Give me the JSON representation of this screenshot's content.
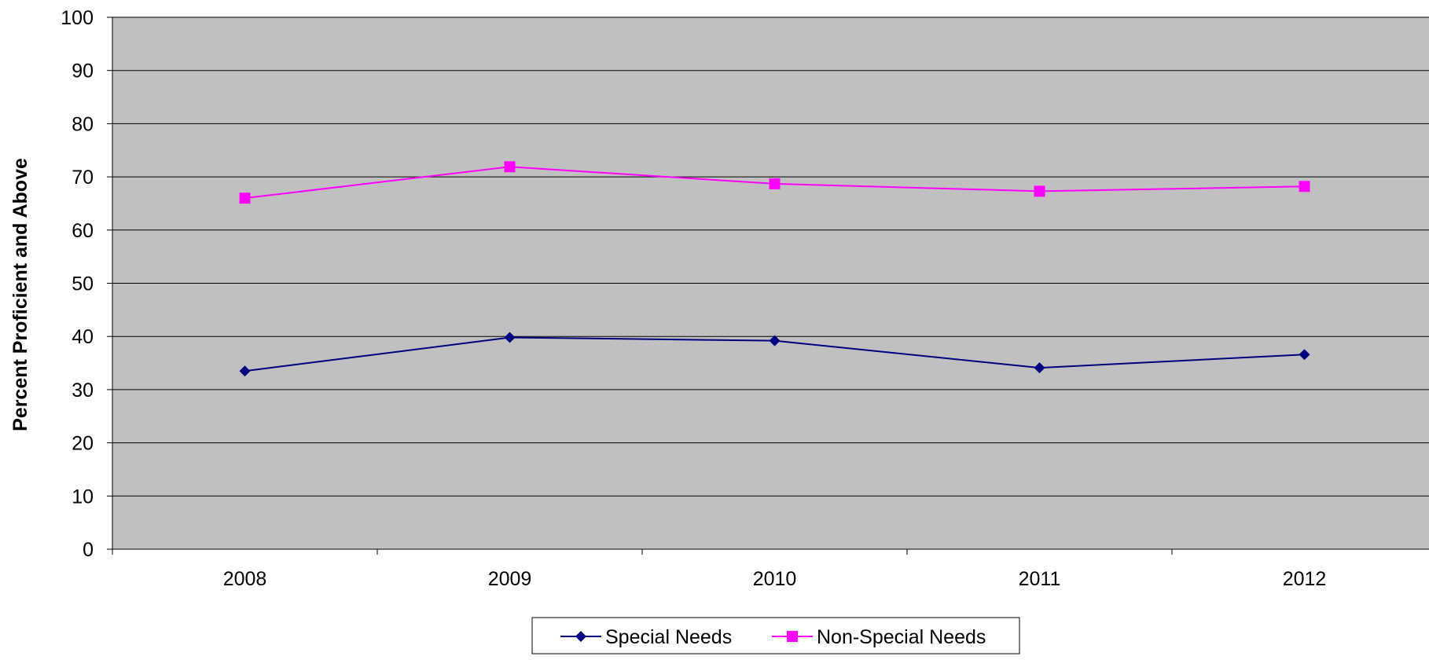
{
  "chart_data": {
    "type": "line",
    "title": "",
    "xlabel": "",
    "ylabel": "Percent Proficient and Above",
    "categories": [
      "2008",
      "2009",
      "2010",
      "2011",
      "2012"
    ],
    "ylim": [
      0,
      100
    ],
    "yticks": [
      0,
      10,
      20,
      30,
      40,
      50,
      60,
      70,
      80,
      90,
      100
    ],
    "grid": true,
    "legend_position": "bottom",
    "plot_background": "#c0c0c0",
    "series": [
      {
        "name": "Special Needs",
        "values": [
          33.5,
          39.8,
          39.2,
          34.1,
          36.6
        ],
        "color": "#000080",
        "marker": "diamond"
      },
      {
        "name": "Non-Special Needs",
        "values": [
          66.0,
          71.9,
          68.7,
          67.3,
          68.2
        ],
        "color": "#ff00ff",
        "marker": "square"
      }
    ]
  }
}
